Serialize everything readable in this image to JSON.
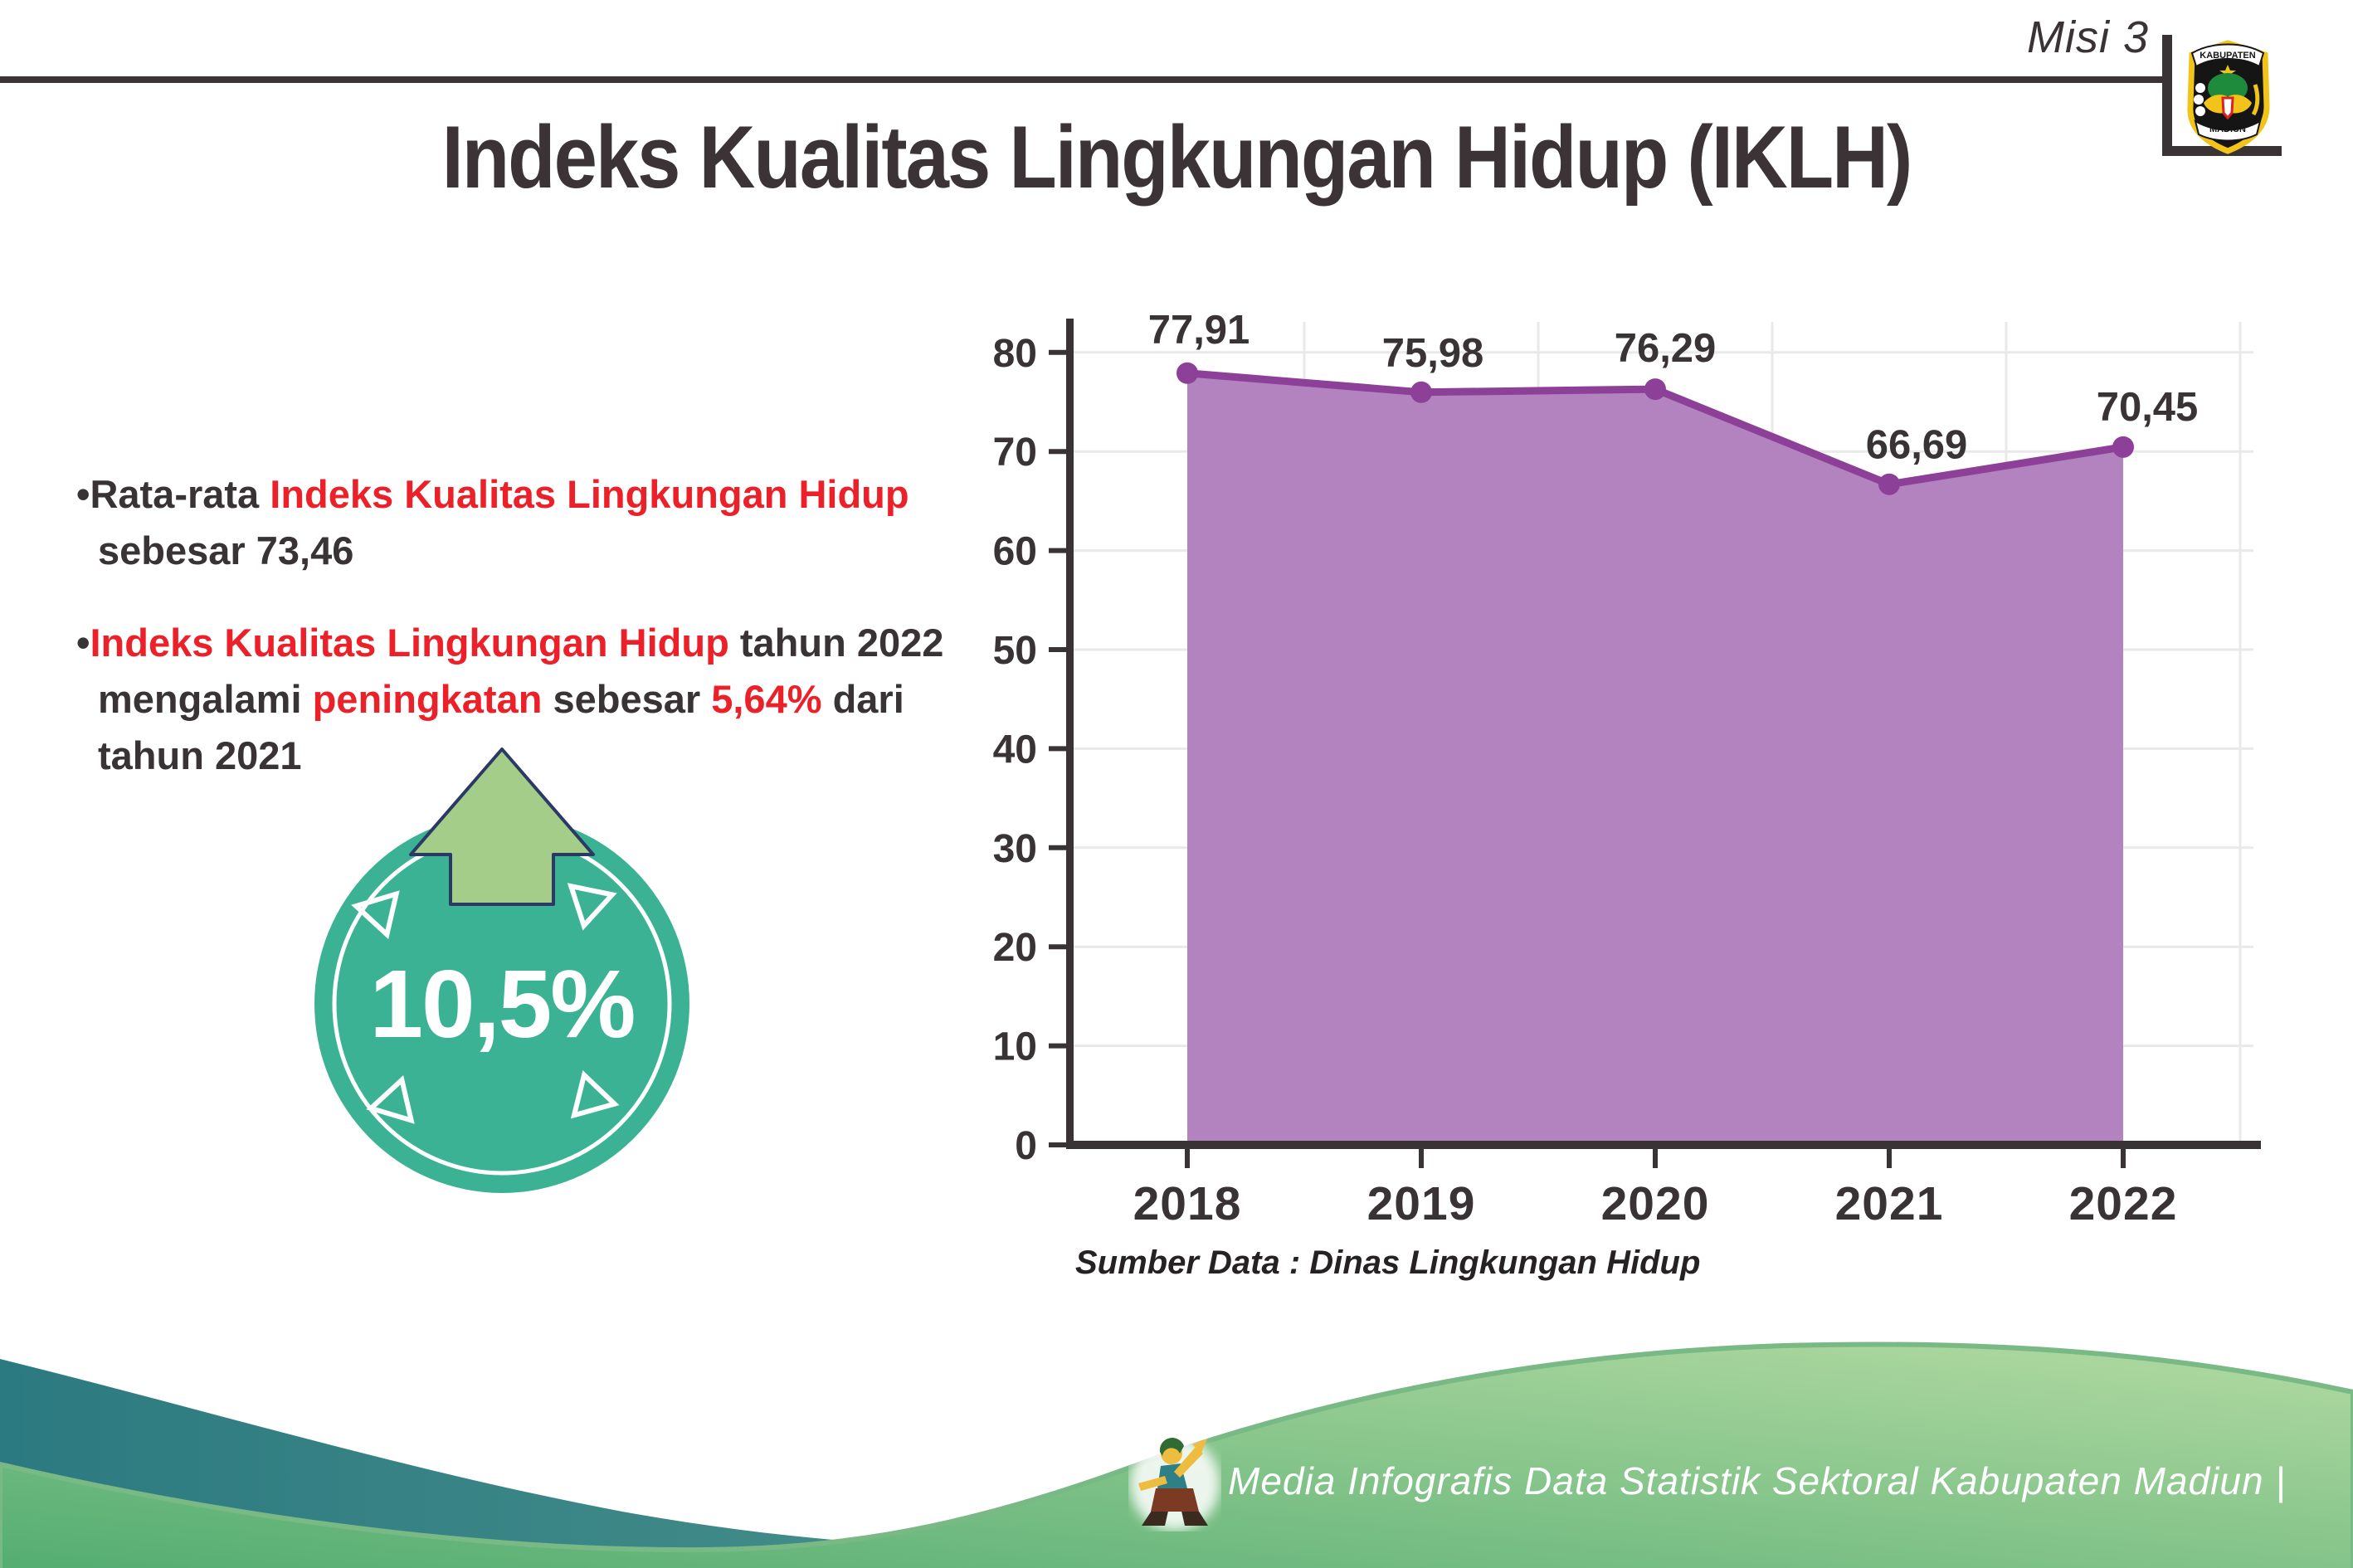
{
  "header": {
    "mission_label": "Misi 3",
    "logo": {
      "top_text": "KABUPATEN",
      "bottom_text": "MADIUN"
    }
  },
  "title": "Indeks Kualitas Lingkungan Hidup (IKLH)",
  "bullets": [
    {
      "segments": [
        {
          "t": "•Rata-rata ",
          "c": "dark"
        },
        {
          "t": "Indeks Kualitas Lingkungan Hidup",
          "c": "red"
        },
        {
          "br": true
        },
        {
          "t": "sebesar 73,46",
          "c": "dark"
        }
      ]
    },
    {
      "segments": [
        {
          "t": "•",
          "c": "dark"
        },
        {
          "t": "Indeks Kualitas Lingkungan Hidup",
          "c": "red"
        },
        {
          "t": " tahun 2022",
          "c": "dark"
        },
        {
          "br": true
        },
        {
          "t": "mengalami ",
          "c": "dark"
        },
        {
          "t": "peningkatan",
          "c": "red"
        },
        {
          "t": " sebesar ",
          "c": "dark"
        },
        {
          "t": "5,64%",
          "c": "red"
        },
        {
          "t": " dari",
          "c": "dark"
        },
        {
          "br": true
        },
        {
          "t": "tahun 2021",
          "c": "dark"
        }
      ]
    }
  ],
  "badge": {
    "value": "10,5%"
  },
  "chart_data": {
    "type": "area",
    "categories": [
      "2018",
      "2019",
      "2020",
      "2021",
      "2022"
    ],
    "values": [
      77.91,
      75.98,
      76.29,
      66.69,
      70.45
    ],
    "value_labels": [
      "77,91",
      "75,98",
      "76,29",
      "66,69",
      "70,45"
    ],
    "title": "",
    "xlabel": "",
    "ylabel": "",
    "ylim": [
      0,
      80
    ],
    "ytick_step": 10,
    "grid": true,
    "legend": false,
    "source": "Sumber Data : Dinas Lingkungan Hidup"
  },
  "footer": {
    "text": "Media Infografis Data Statistik Sektoral Kabupaten Madiun |"
  },
  "colors": {
    "text_dark": "#3a3335",
    "text_red": "#ec2028",
    "area_fill": "#b283bf",
    "line": "#8d4097",
    "axis": "#3a3335",
    "grid": "#e9e9e9",
    "badge_teal": "#3cb294",
    "arrow_green": "#a5cd8a",
    "arrow_outline": "#2b3a64",
    "footer_teal_left": "#2c7a81",
    "footer_teal_right": "#68a995",
    "footer_green_left": "#54ad72",
    "footer_green_right": "#b2daa1"
  }
}
